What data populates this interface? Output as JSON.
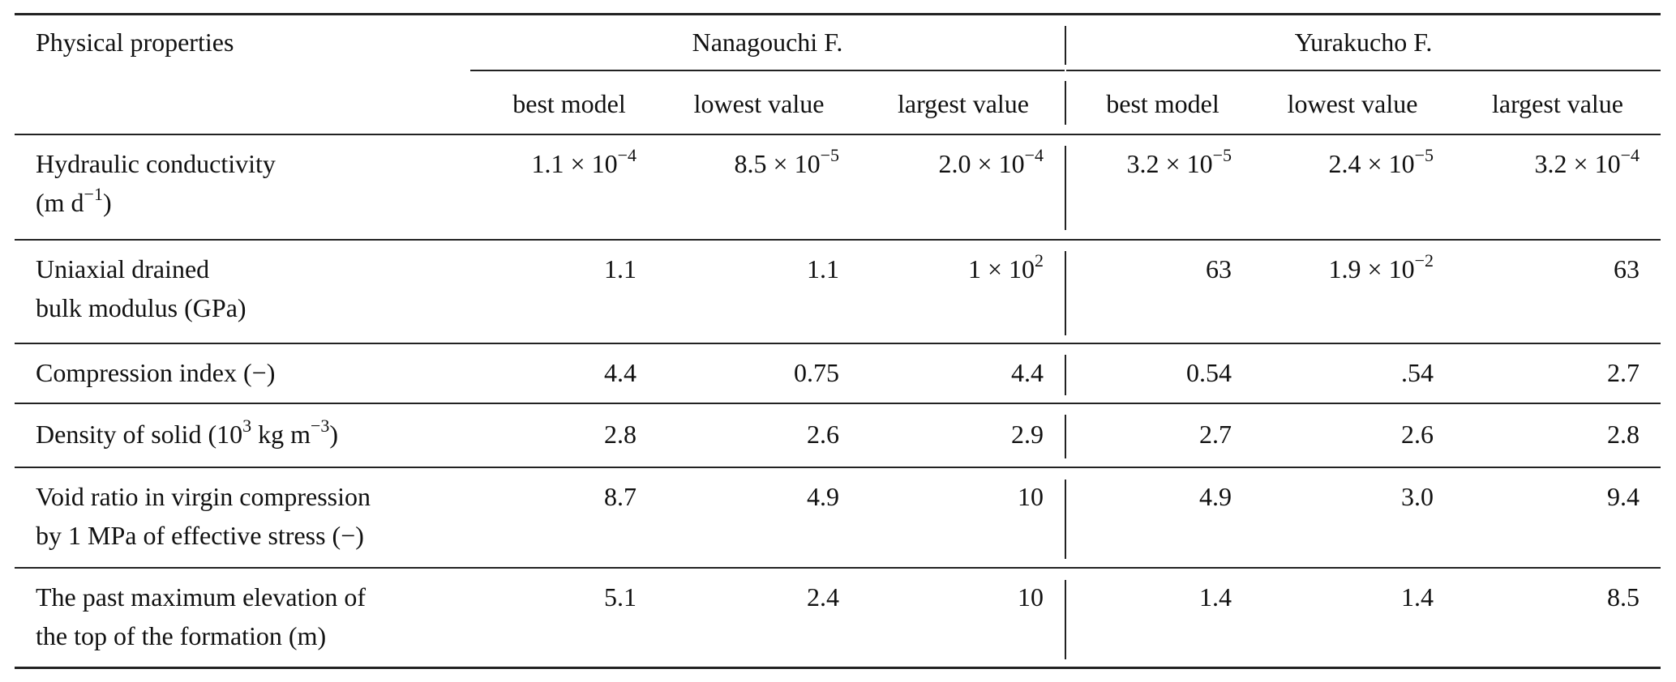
{
  "table": {
    "stub_header": "Physical properties",
    "groups": [
      {
        "label": "Nanagouchi F.",
        "columns": [
          "best model",
          "lowest value",
          "largest value"
        ]
      },
      {
        "label": "Yurakucho F.",
        "columns": [
          "best model",
          "lowest value",
          "largest value"
        ]
      }
    ],
    "rows": [
      {
        "label_lines": [
          "Hydraulic conductivity",
          "(m d",
          "−1",
          ")"
        ],
        "values": [
          {
            "m": "1.1 × 10",
            "e": "−4"
          },
          {
            "m": "8.5 × 10",
            "e": "−5"
          },
          {
            "m": "2.0 × 10",
            "e": "−4"
          },
          {
            "m": "3.2 × 10",
            "e": "−5"
          },
          {
            "m": "2.4 × 10",
            "e": "−5"
          },
          {
            "m": "3.2 × 10",
            "e": "−4"
          }
        ]
      },
      {
        "label_lines": [
          "Uniaxial drained",
          "bulk modulus (GPa)"
        ],
        "values": [
          {
            "m": "1.1",
            "e": ""
          },
          {
            "m": "1.1",
            "e": ""
          },
          {
            "m": "1 × 10",
            "e": "2"
          },
          {
            "m": "63",
            "e": ""
          },
          {
            "m": "1.9 × 10",
            "e": "−2"
          },
          {
            "m": "63",
            "e": ""
          }
        ]
      },
      {
        "label_lines": [
          "Compression index (−)"
        ],
        "values": [
          {
            "m": "4.4",
            "e": ""
          },
          {
            "m": "0.75",
            "e": ""
          },
          {
            "m": "4.4",
            "e": ""
          },
          {
            "m": "0.54",
            "e": ""
          },
          {
            "m": ".54",
            "e": ""
          },
          {
            "m": "2.7",
            "e": ""
          }
        ]
      },
      {
        "label_parts": [
          "Density of solid (10",
          "3",
          " kg m",
          "−3",
          ")"
        ],
        "values": [
          {
            "m": "2.8",
            "e": ""
          },
          {
            "m": "2.6",
            "e": ""
          },
          {
            "m": "2.9",
            "e": ""
          },
          {
            "m": "2.7",
            "e": ""
          },
          {
            "m": "2.6",
            "e": ""
          },
          {
            "m": "2.8",
            "e": ""
          }
        ]
      },
      {
        "label_lines": [
          "Void ratio in virgin compression",
          "by 1 MPa of effective stress (−)"
        ],
        "values": [
          {
            "m": "8.7",
            "e": ""
          },
          {
            "m": "4.9",
            "e": ""
          },
          {
            "m": "10",
            "e": ""
          },
          {
            "m": "4.9",
            "e": ""
          },
          {
            "m": "3.0",
            "e": ""
          },
          {
            "m": "9.4",
            "e": ""
          }
        ]
      },
      {
        "label_lines": [
          "The past maximum elevation of",
          "the top of the formation (m)"
        ],
        "values": [
          {
            "m": "5.1",
            "e": ""
          },
          {
            "m": "2.4",
            "e": ""
          },
          {
            "m": "10",
            "e": ""
          },
          {
            "m": "1.4",
            "e": ""
          },
          {
            "m": "1.4",
            "e": ""
          },
          {
            "m": "8.5",
            "e": ""
          }
        ]
      }
    ]
  }
}
